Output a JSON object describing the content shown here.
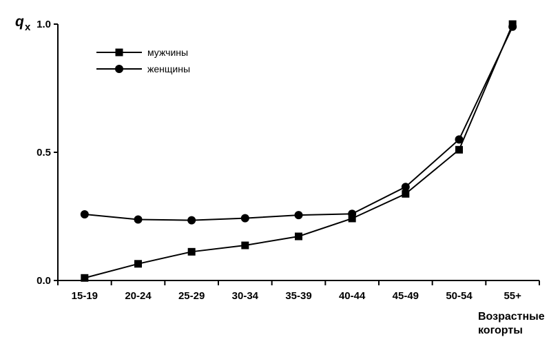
{
  "chart_data": {
    "type": "line",
    "title": "",
    "xlabel_lines": [
      "Возрастные",
      "когорты"
    ],
    "ylabel_main": "q",
    "ylabel_sub": "x",
    "categories": [
      "15-19",
      "20-24",
      "25-29",
      "30-34",
      "35-39",
      "40-44",
      "45-49",
      "50-54",
      "55+"
    ],
    "ylim": [
      0,
      1.0
    ],
    "yticks": [
      "0.0",
      "0.5",
      "1.0"
    ],
    "grid": false,
    "legend_position": "top-left",
    "series": [
      {
        "name": "мужчины",
        "marker": "square",
        "color": "#000000",
        "values": [
          0.01,
          0.065,
          0.112,
          0.137,
          0.172,
          0.242,
          0.338,
          0.51,
          1.0
        ]
      },
      {
        "name": "женщины",
        "marker": "circle",
        "color": "#000000",
        "values": [
          0.258,
          0.238,
          0.235,
          0.243,
          0.255,
          0.26,
          0.365,
          0.55,
          0.99
        ]
      }
    ]
  }
}
